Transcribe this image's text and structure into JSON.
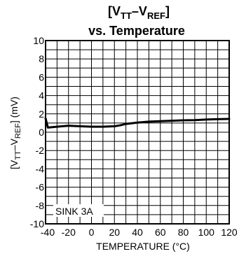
{
  "chart_data": {
    "type": "line",
    "title_parts": [
      "[V",
      "TT",
      "–V",
      "REF",
      "]"
    ],
    "subtitle": "vs. Temperature",
    "xlabel": "TEMPERATURE (°C)",
    "ylabel_parts": [
      "[V",
      "TT",
      "–V",
      "REF",
      "] (mV)"
    ],
    "xlim": [
      -40,
      120
    ],
    "ylim": [
      -10,
      10
    ],
    "x_ticks": [
      -40,
      -20,
      0,
      20,
      40,
      60,
      80,
      100,
      120
    ],
    "y_ticks": [
      10,
      8,
      6,
      4,
      2,
      0,
      -2,
      -4,
      -6,
      -8,
      -10
    ],
    "grid": true,
    "annotation": "SINK 3A",
    "series": [
      {
        "x": [
          -40,
          -38,
          -30,
          -20,
          -10,
          0,
          10,
          20,
          25,
          30,
          40,
          50,
          60,
          70,
          80,
          90,
          100,
          110,
          120
        ],
        "values": [
          1.5,
          0.5,
          0.6,
          0.7,
          0.65,
          0.6,
          0.6,
          0.65,
          0.75,
          0.9,
          1.05,
          1.15,
          1.2,
          1.25,
          1.3,
          1.32,
          1.38,
          1.42,
          1.45
        ]
      }
    ]
  }
}
